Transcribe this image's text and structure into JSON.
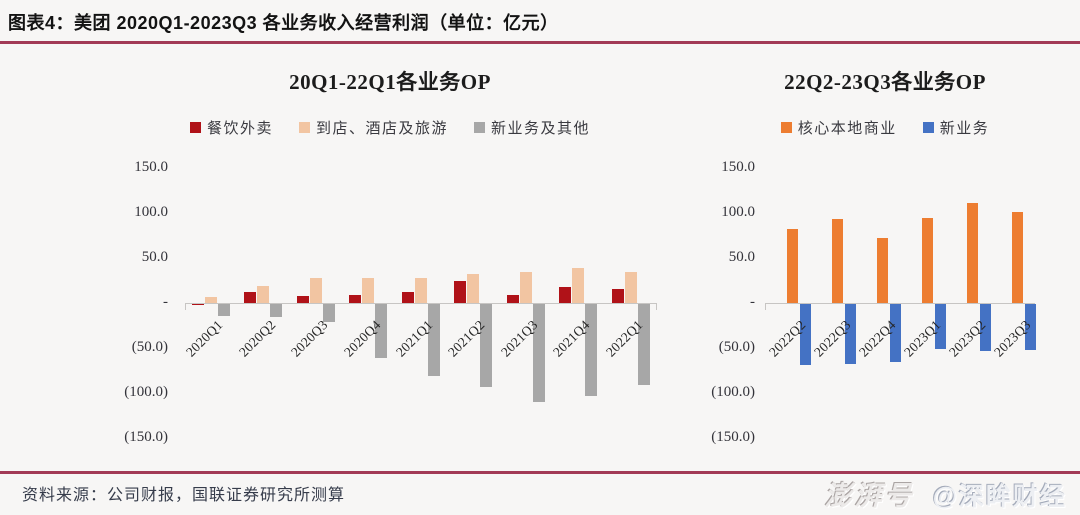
{
  "header": {
    "title": "图表4：美团 2020Q1-2023Q3 各业务收入经营利润（单位：亿元）"
  },
  "colors": {
    "accent_rule": "#a23a56",
    "axis_line": "#c7c5c3",
    "food_delivery_red": "#b01218",
    "instore_hotel_peach": "#f2c5a2",
    "new_business_gray": "#a7a7a7",
    "core_local_orange": "#ed7d31",
    "new_business_blue": "#4472c4",
    "background": "#f7f6f5"
  },
  "chart_data": [
    {
      "type": "bar",
      "title": "20Q1-22Q1各业务OP",
      "categories": [
        "2020Q1",
        "2020Q2",
        "2020Q3",
        "2020Q4",
        "2021Q1",
        "2021Q2",
        "2021Q3",
        "2021Q4",
        "2022Q1"
      ],
      "series": [
        {
          "name": "餐饮外卖",
          "color": "#b01218",
          "values": [
            -0.7,
            12.5,
            7.7,
            8.8,
            11.7,
            24.7,
            8.8,
            17.4,
            15.8
          ]
        },
        {
          "name": "到店、酒店及旅游",
          "color": "#f2c5a2",
          "values": [
            6.8,
            19.2,
            28.0,
            28.2,
            27.5,
            32.2,
            34.6,
            39.4,
            34.8
          ]
        },
        {
          "name": "新业务及其他",
          "color": "#a7a7a7",
          "values": [
            -13.6,
            -14.6,
            -20.3,
            -60.0,
            -80.4,
            -92.4,
            -109.1,
            -102.1,
            -90.2
          ]
        }
      ],
      "ylim": [
        -150,
        150
      ],
      "yticks": [
        {
          "value": 150,
          "label": "150.0"
        },
        {
          "value": 100,
          "label": "100.0"
        },
        {
          "value": 50,
          "label": "50.0"
        },
        {
          "value": 0,
          "label": "-"
        },
        {
          "value": -50,
          "label": "(50.0)"
        },
        {
          "value": -100,
          "label": "(100.0)"
        },
        {
          "value": -150,
          "label": "(150.0)"
        }
      ],
      "xlabel": "",
      "ylabel": "",
      "grid": false,
      "legend_position": "top"
    },
    {
      "type": "bar",
      "title": "22Q2-23Q3各业务OP",
      "categories": [
        "2022Q2",
        "2022Q3",
        "2022Q4",
        "2023Q1",
        "2023Q2",
        "2023Q3"
      ],
      "series": [
        {
          "name": "核心本地商业",
          "color": "#ed7d31",
          "values": [
            82.6,
            93.2,
            72.2,
            94.5,
            111.4,
            101.1
          ]
        },
        {
          "name": "新业务",
          "color": "#4472c4",
          "values": [
            -67.9,
            -67.1,
            -64.1,
            -50.2,
            -51.8,
            -51.1
          ]
        }
      ],
      "ylim": [
        -150,
        150
      ],
      "yticks": [
        {
          "value": 150,
          "label": "150.0"
        },
        {
          "value": 100,
          "label": "100.0"
        },
        {
          "value": 50,
          "label": "50.0"
        },
        {
          "value": 0,
          "label": "-"
        },
        {
          "value": -50,
          "label": "(50.0)"
        },
        {
          "value": -100,
          "label": "(100.0)"
        },
        {
          "value": -150,
          "label": "(150.0)"
        }
      ],
      "xlabel": "",
      "ylabel": "",
      "grid": false,
      "legend_position": "top"
    }
  ],
  "footer": {
    "source": "资料来源：公司财报，国联证券研究所测算"
  },
  "watermark": {
    "brand": "澎湃号",
    "handle": "@深眸财经"
  }
}
